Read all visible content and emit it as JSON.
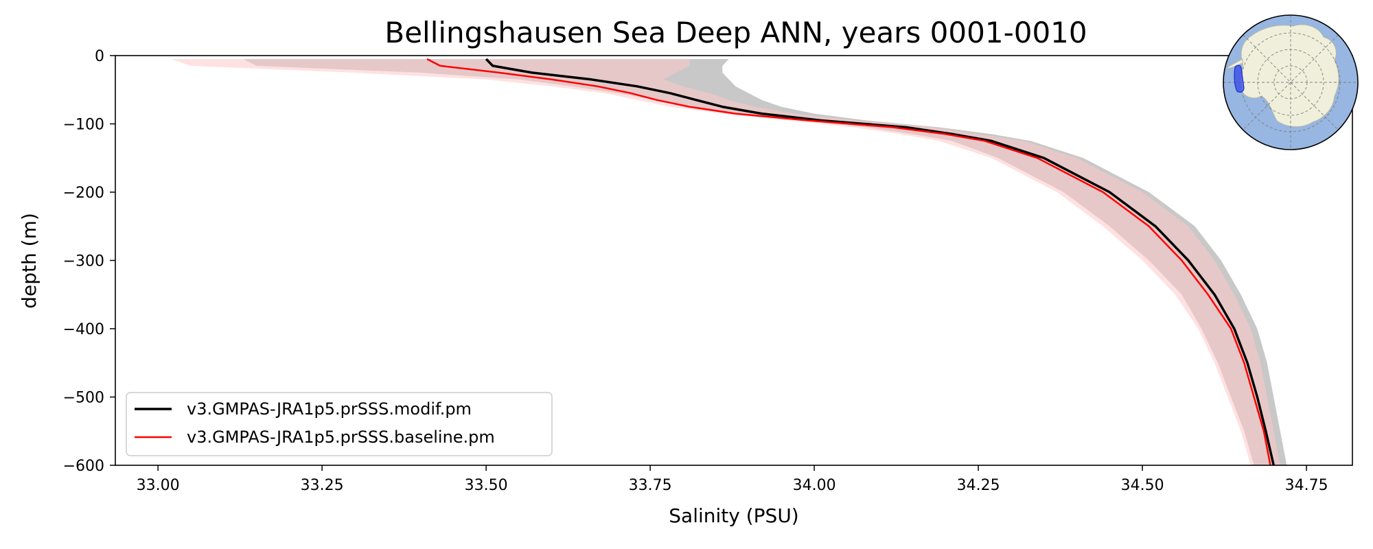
{
  "chart_data": {
    "type": "line",
    "title": "Bellingshausen Sea Deep ANN, years 0001-0010",
    "xlabel": "Salinity (PSU)",
    "ylabel": "depth (m)",
    "xlim": [
      32.935,
      34.82
    ],
    "ylim": [
      -600,
      0
    ],
    "x_ticks": [
      "33.00",
      "33.25",
      "33.50",
      "33.75",
      "34.00",
      "34.25",
      "34.50",
      "34.75"
    ],
    "y_ticks": [
      "0",
      "−100",
      "−200",
      "−300",
      "−400",
      "−500",
      "−600"
    ],
    "grid": false,
    "legend_position": "lower-left",
    "inset_map": "antarctica-region-map",
    "colors": {
      "modif": "#000000",
      "baseline": "#ff0000",
      "modif_band": "#c8c8c8",
      "baseline_band": "#ffc8c8",
      "overlap_band": "#d4a1a1"
    },
    "series": [
      {
        "name": "v3.GMPAS-JRA1p5.prSSS.modif.pm",
        "depth": [
          -5,
          -15,
          -25,
          -35,
          -45,
          -55,
          -65,
          -75,
          -85,
          -95,
          -105,
          -115,
          -125,
          -150,
          -200,
          -250,
          -300,
          -350,
          -400,
          -450,
          -500,
          -550,
          -600
        ],
        "x": [
          33.5,
          33.51,
          33.57,
          33.66,
          33.73,
          33.78,
          33.82,
          33.86,
          33.92,
          34.01,
          34.14,
          34.21,
          34.27,
          34.35,
          34.45,
          34.52,
          34.57,
          34.61,
          34.64,
          34.66,
          34.675,
          34.688,
          34.7
        ],
        "band_low": [
          33.13,
          33.15,
          33.4,
          33.55,
          33.63,
          33.7,
          33.76,
          33.82,
          33.88,
          33.98,
          34.08,
          34.15,
          34.21,
          34.28,
          34.38,
          34.45,
          34.51,
          34.56,
          34.59,
          34.615,
          34.635,
          34.655,
          34.67
        ],
        "band_high": [
          33.87,
          33.86,
          33.86,
          33.87,
          33.88,
          33.9,
          33.92,
          33.95,
          34.0,
          34.08,
          34.19,
          34.27,
          34.33,
          34.41,
          34.51,
          34.58,
          34.62,
          34.65,
          34.675,
          34.69,
          34.7,
          34.71,
          34.72
        ]
      },
      {
        "name": "v3.GMPAS-JRA1p5.prSSS.baseline.pm",
        "depth": [
          -5,
          -15,
          -25,
          -35,
          -45,
          -55,
          -65,
          -75,
          -85,
          -95,
          -105,
          -115,
          -125,
          -150,
          -200,
          -250,
          -300,
          -350,
          -400,
          -450,
          -500,
          -550,
          -600
        ],
        "x": [
          33.41,
          33.43,
          33.52,
          33.6,
          33.67,
          33.72,
          33.76,
          33.81,
          33.88,
          33.99,
          34.12,
          34.2,
          34.26,
          34.34,
          34.44,
          34.51,
          34.56,
          34.6,
          34.635,
          34.655,
          34.67,
          34.685,
          34.695
        ],
        "band_low": [
          33.02,
          33.05,
          33.3,
          33.5,
          33.6,
          33.68,
          33.73,
          33.78,
          33.86,
          33.96,
          34.06,
          34.13,
          34.19,
          34.27,
          34.37,
          34.44,
          34.5,
          34.55,
          34.585,
          34.61,
          34.63,
          34.65,
          34.665
        ],
        "band_high": [
          33.81,
          33.81,
          33.79,
          33.77,
          33.8,
          33.84,
          33.87,
          33.91,
          33.97,
          34.06,
          34.18,
          34.25,
          34.32,
          34.4,
          34.5,
          34.57,
          34.61,
          34.64,
          34.665,
          34.68,
          34.69,
          34.7,
          34.71
        ]
      }
    ]
  }
}
